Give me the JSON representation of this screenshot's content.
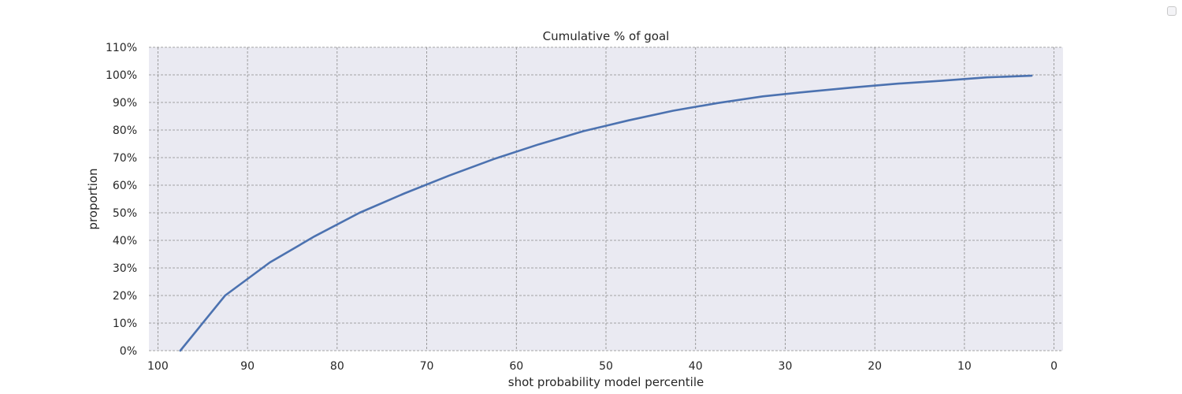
{
  "chart_data": {
    "type": "line",
    "title": "Cumulative % of goal",
    "xlabel": "shot probability model percentile",
    "ylabel": "proportion",
    "xlim": [
      101,
      -1
    ],
    "ylim": [
      0,
      110
    ],
    "x_inverted": true,
    "xticks": [
      100,
      90,
      80,
      70,
      60,
      50,
      40,
      30,
      20,
      10,
      0
    ],
    "yticks": [
      0,
      10,
      20,
      30,
      40,
      50,
      60,
      70,
      80,
      90,
      100,
      110
    ],
    "ytick_labels": [
      "0%",
      "10%",
      "20%",
      "30%",
      "40%",
      "50%",
      "60%",
      "70%",
      "80%",
      "90%",
      "100%",
      "110%"
    ],
    "grid": true,
    "legend": "top-right",
    "colors": {
      "line": "#4c72b0",
      "plot_background": "#eaeaf2",
      "grid": "#8a8a8a"
    },
    "series": [
      {
        "x": [
          97.5,
          92.5,
          87.5,
          82.5,
          77.5,
          72.5,
          67.5,
          62.5,
          57.5,
          52.5,
          47.5,
          42.5,
          37.5,
          32.5,
          27.5,
          22.5,
          17.5,
          12.5,
          7.5,
          2.5
        ],
        "y": [
          0,
          20,
          32,
          41.5,
          50,
          57,
          63.5,
          69.5,
          74.8,
          79.6,
          83.5,
          87,
          89.8,
          92.2,
          93.9,
          95.4,
          96.8,
          97.9,
          99.1,
          99.7
        ]
      }
    ]
  }
}
